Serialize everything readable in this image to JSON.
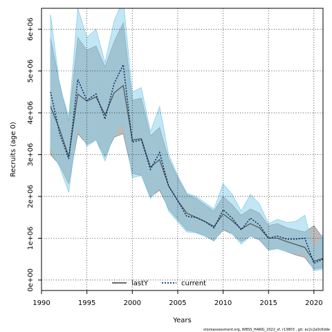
{
  "chart_data": {
    "type": "line",
    "xlabel": "Years",
    "ylabel": "Recruits (age 0)",
    "xlim": [
      1990,
      2021
    ],
    "ylim": [
      -250000,
      6500000
    ],
    "x_ticks": [
      {
        "v": 1990,
        "label": "1990"
      },
      {
        "v": 1995,
        "label": "1995"
      },
      {
        "v": 2000,
        "label": "2000"
      },
      {
        "v": 2005,
        "label": "2005"
      },
      {
        "v": 2010,
        "label": "2010"
      },
      {
        "v": 2015,
        "label": "2015"
      },
      {
        "v": 2020,
        "label": "2020"
      }
    ],
    "y_ticks": [
      {
        "v": 0,
        "label": "0e+00"
      },
      {
        "v": 1000000,
        "label": "1e+06"
      },
      {
        "v": 2000000,
        "label": "2e+06"
      },
      {
        "v": 3000000,
        "label": "3e+06"
      },
      {
        "v": 4000000,
        "label": "4e+06"
      },
      {
        "v": 5000000,
        "label": "5e+06"
      },
      {
        "v": 6000000,
        "label": "6e+06"
      }
    ],
    "grid": true,
    "legend_position": "bottom-center",
    "x": [
      1991,
      1992,
      1993,
      1994,
      1995,
      1996,
      1997,
      1998,
      1999,
      2000,
      2001,
      2002,
      2003,
      2004,
      2005,
      2006,
      2007,
      2008,
      2009,
      2010,
      2011,
      2012,
      2013,
      2014,
      2015,
      2016,
      2017,
      2018,
      2019,
      2020,
      2021
    ],
    "series": [
      {
        "name": "lastY",
        "color": "#555555",
        "band_color": "#8c8c8c",
        "line_style": "solid",
        "values": [
          4150000,
          3600000,
          2950000,
          4450000,
          4280000,
          4380000,
          3950000,
          4480000,
          4650000,
          3350000,
          3380000,
          2700000,
          2880000,
          2250000,
          1900000,
          1600000,
          1500000,
          1400000,
          1280000,
          1580000,
          1420000,
          1220000,
          1350000,
          1250000,
          1000000,
          1000000,
          920000,
          850000,
          780000,
          450000,
          520000
        ],
        "lower": [
          3000000,
          2750000,
          2300000,
          3500000,
          3250000,
          3350000,
          2950000,
          3420000,
          3500000,
          2550000,
          2500000,
          1990000,
          2150000,
          1700000,
          1450000,
          1200000,
          1150000,
          1050000,
          950000,
          1200000,
          1100000,
          920000,
          1050000,
          960000,
          720000,
          750000,
          680000,
          600000,
          540000,
          260000,
          300000
        ],
        "upper": [
          5800000,
          4700000,
          3800000,
          5800000,
          5500000,
          5600000,
          5100000,
          5700000,
          6150000,
          4300000,
          4350000,
          3450000,
          3650000,
          2900000,
          2450000,
          2050000,
          1950000,
          1800000,
          1650000,
          2000000,
          1800000,
          1550000,
          1700000,
          1600000,
          1300000,
          1350000,
          1250000,
          1200000,
          1150000,
          1300000,
          1000000
        ]
      },
      {
        "name": "current",
        "color": "#003366",
        "band_color": "#87ceeb",
        "line_style": "dotted",
        "values": [
          4500000,
          3500000,
          2900000,
          4800000,
          4300000,
          4450000,
          3850000,
          4700000,
          5150000,
          3300000,
          3350000,
          2650000,
          3050000,
          2250000,
          1900000,
          1520000,
          1500000,
          1400000,
          1250000,
          1680000,
          1480000,
          1200000,
          1480000,
          1320000,
          1000000,
          1050000,
          980000,
          980000,
          1000000,
          400000,
          500000
        ],
        "lower": [
          3150000,
          2700000,
          2100000,
          3700000,
          3200000,
          3350000,
          2850000,
          3500000,
          3800000,
          2450000,
          2500000,
          1950000,
          2250000,
          1650000,
          1400000,
          1150000,
          1130000,
          1050000,
          930000,
          1250000,
          1100000,
          860000,
          1050000,
          980000,
          730000,
          750000,
          690000,
          640000,
          650000,
          220000,
          260000
        ],
        "upper": [
          6350000,
          4650000,
          3900000,
          6500000,
          5800000,
          6000000,
          5200000,
          6200000,
          6700000,
          4500000,
          4600000,
          3550000,
          4150000,
          3000000,
          2500000,
          2080000,
          2000000,
          1850000,
          1700000,
          2300000,
          2050000,
          1650000,
          2050000,
          1820000,
          1350000,
          1450000,
          1380000,
          1400000,
          1550000,
          700000,
          1100000
        ]
      }
    ],
    "footnote": "stockassessment.org, WBSS_HAWG_2022_sf, r13803 , git: ec2c2a0c6dde"
  }
}
